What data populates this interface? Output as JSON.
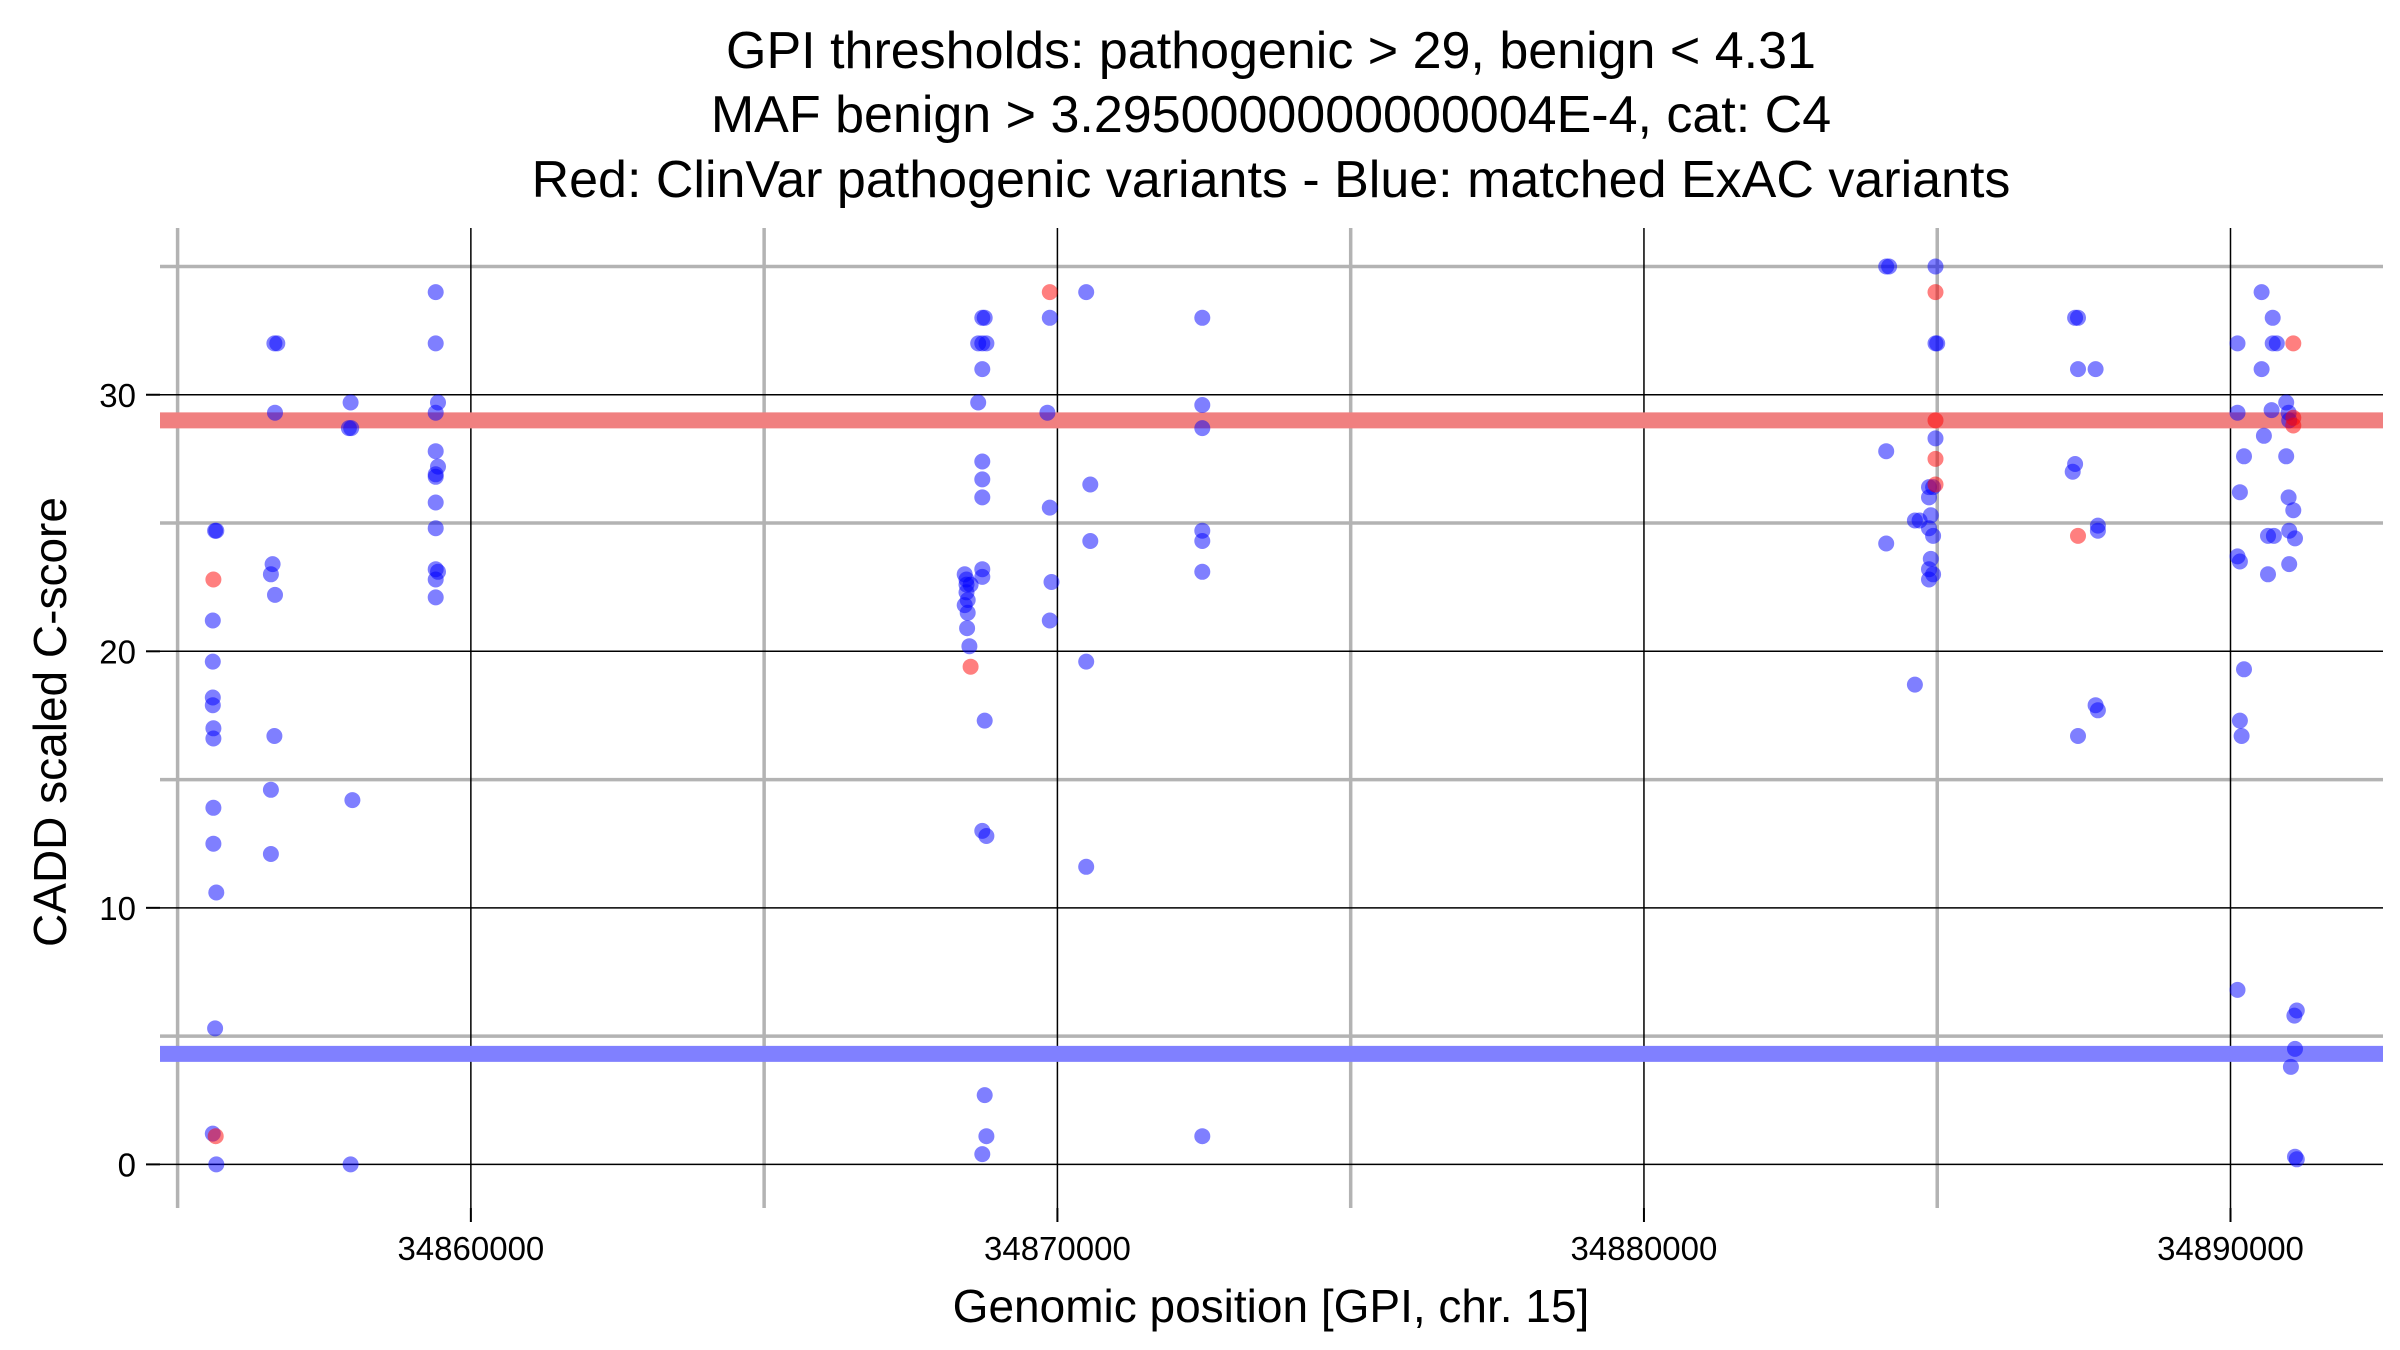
{
  "chart_data": {
    "type": "scatter",
    "title_lines": [
      "GPI thresholds: pathogenic > 29, benign < 4.31",
      "MAF benign > 3.2950000000000004E-4, cat: C4",
      "Red: ClinVar pathogenic variants - Blue: matched ExAC variants"
    ],
    "xlabel": "Genomic position [GPI, chr. 15]",
    "ylabel": "CADD scaled C-score",
    "xlim": [
      34854700,
      34892600
    ],
    "ylim": [
      -1.7,
      36.5
    ],
    "x_major_ticks": [
      34860000,
      34870000,
      34880000,
      34890000
    ],
    "x_minor_ticks": [
      34855000,
      34865000,
      34875000,
      34885000
    ],
    "y_major_ticks": [
      0,
      10,
      20,
      30
    ],
    "y_minor_ticks": [
      5,
      15,
      25,
      35
    ],
    "x_tick_labels": [
      "34860000",
      "34870000",
      "34880000",
      "34890000"
    ],
    "y_tick_labels": [
      "0",
      "10",
      "20",
      "30"
    ],
    "grid": true,
    "thresholds": [
      {
        "role": "pathogenic",
        "value": 29,
        "color": "#f08080"
      },
      {
        "role": "benign",
        "value": 4.31,
        "color": "#8080ff"
      }
    ],
    "colors": {
      "exac": "#0000ff",
      "clinvar": "#ff0000"
    },
    "series": [
      {
        "role": "clinvar",
        "points": [
          [
            34855610,
            22.8
          ],
          [
            34855650,
            1.1
          ],
          [
            34868520,
            19.4
          ],
          [
            34869870,
            34.0
          ],
          [
            34884970,
            34.0
          ],
          [
            34884970,
            29.0
          ],
          [
            34884970,
            27.5
          ],
          [
            34884970,
            26.5
          ],
          [
            34887400,
            24.5
          ],
          [
            34891070,
            32.0
          ],
          [
            34891070,
            29.1
          ],
          [
            34891070,
            28.8
          ]
        ]
      },
      {
        "role": "exac",
        "points": [
          [
            34855600,
            21.2
          ],
          [
            34855600,
            19.6
          ],
          [
            34855600,
            18.2
          ],
          [
            34855600,
            17.9
          ],
          [
            34855610,
            17.0
          ],
          [
            34855610,
            16.6
          ],
          [
            34855610,
            13.9
          ],
          [
            34855610,
            12.5
          ],
          [
            34855640,
            24.7
          ],
          [
            34855660,
            24.7
          ],
          [
            34855660,
            10.6
          ],
          [
            34855640,
            5.3
          ],
          [
            34855600,
            1.2
          ],
          [
            34855660,
            0.0
          ],
          [
            34856650,
            32.0
          ],
          [
            34856700,
            32.0
          ],
          [
            34856660,
            29.3
          ],
          [
            34856620,
            23.4
          ],
          [
            34856590,
            23.0
          ],
          [
            34856660,
            22.2
          ],
          [
            34856650,
            16.7
          ],
          [
            34856590,
            14.6
          ],
          [
            34856590,
            12.1
          ],
          [
            34857950,
            29.7
          ],
          [
            34857920,
            28.7
          ],
          [
            34857960,
            28.7
          ],
          [
            34857980,
            14.2
          ],
          [
            34857950,
            0.0
          ],
          [
            34859400,
            34.0
          ],
          [
            34859400,
            32.0
          ],
          [
            34859440,
            29.7
          ],
          [
            34859400,
            29.3
          ],
          [
            34859400,
            27.8
          ],
          [
            34859440,
            27.2
          ],
          [
            34859400,
            26.9
          ],
          [
            34859400,
            26.8
          ],
          [
            34859400,
            25.8
          ],
          [
            34859400,
            24.8
          ],
          [
            34859400,
            23.2
          ],
          [
            34859440,
            23.1
          ],
          [
            34859400,
            22.8
          ],
          [
            34859400,
            22.1
          ],
          [
            34868420,
            23.0
          ],
          [
            34868450,
            22.8
          ],
          [
            34868450,
            22.6
          ],
          [
            34868520,
            22.6
          ],
          [
            34868450,
            22.3
          ],
          [
            34868470,
            22.0
          ],
          [
            34868420,
            21.8
          ],
          [
            34868470,
            21.5
          ],
          [
            34868460,
            20.9
          ],
          [
            34868500,
            20.2
          ],
          [
            34868720,
            33.0
          ],
          [
            34868760,
            33.0
          ],
          [
            34868650,
            32.0
          ],
          [
            34868720,
            32.0
          ],
          [
            34868790,
            32.0
          ],
          [
            34868720,
            31.0
          ],
          [
            34868650,
            29.7
          ],
          [
            34868720,
            27.4
          ],
          [
            34868720,
            26.7
          ],
          [
            34868720,
            26.0
          ],
          [
            34868720,
            23.2
          ],
          [
            34868720,
            22.9
          ],
          [
            34868760,
            17.3
          ],
          [
            34868720,
            13.0
          ],
          [
            34868790,
            12.8
          ],
          [
            34868760,
            2.7
          ],
          [
            34868790,
            1.1
          ],
          [
            34868720,
            0.4
          ],
          [
            34869870,
            33.0
          ],
          [
            34869830,
            29.3
          ],
          [
            34869870,
            25.6
          ],
          [
            34869900,
            22.7
          ],
          [
            34869870,
            21.2
          ],
          [
            34870490,
            34.0
          ],
          [
            34870560,
            26.5
          ],
          [
            34870560,
            24.3
          ],
          [
            34870490,
            19.6
          ],
          [
            34870490,
            11.6
          ],
          [
            34872470,
            33.0
          ],
          [
            34872470,
            29.6
          ],
          [
            34872470,
            28.7
          ],
          [
            34872470,
            24.7
          ],
          [
            34872470,
            24.3
          ],
          [
            34872470,
            23.1
          ],
          [
            34872470,
            1.1
          ],
          [
            34884130,
            35.0
          ],
          [
            34884180,
            35.0
          ],
          [
            34884130,
            27.8
          ],
          [
            34884130,
            24.2
          ],
          [
            34884620,
            25.1
          ],
          [
            34884700,
            25.1
          ],
          [
            34884620,
            18.7
          ],
          [
            34884970,
            35.0
          ],
          [
            34884970,
            32.0
          ],
          [
            34885000,
            32.0
          ],
          [
            34884970,
            28.3
          ],
          [
            34884860,
            26.4
          ],
          [
            34884930,
            26.4
          ],
          [
            34884860,
            26.0
          ],
          [
            34884890,
            25.3
          ],
          [
            34884860,
            24.8
          ],
          [
            34884930,
            24.5
          ],
          [
            34884890,
            23.6
          ],
          [
            34884860,
            23.2
          ],
          [
            34884930,
            23.0
          ],
          [
            34884860,
            22.8
          ],
          [
            34887350,
            33.0
          ],
          [
            34887400,
            33.0
          ],
          [
            34887400,
            31.0
          ],
          [
            34887700,
            31.0
          ],
          [
            34887350,
            27.3
          ],
          [
            34887310,
            27.0
          ],
          [
            34887740,
            24.9
          ],
          [
            34887740,
            24.7
          ],
          [
            34887700,
            17.9
          ],
          [
            34887740,
            17.7
          ],
          [
            34887400,
            16.7
          ],
          [
            34890120,
            32.0
          ],
          [
            34890120,
            29.3
          ],
          [
            34890230,
            27.6
          ],
          [
            34890160,
            26.2
          ],
          [
            34890120,
            23.7
          ],
          [
            34890160,
            23.5
          ],
          [
            34890230,
            19.3
          ],
          [
            34890160,
            17.3
          ],
          [
            34890190,
            16.7
          ],
          [
            34890120,
            6.8
          ],
          [
            34890530,
            34.0
          ],
          [
            34890530,
            31.0
          ],
          [
            34890570,
            28.4
          ],
          [
            34890640,
            24.5
          ],
          [
            34890740,
            24.5
          ],
          [
            34890640,
            23.0
          ],
          [
            34890720,
            33.0
          ],
          [
            34890720,
            32.0
          ],
          [
            34890790,
            32.0
          ],
          [
            34890700,
            29.4
          ],
          [
            34890950,
            29.7
          ],
          [
            34890990,
            29.3
          ],
          [
            34891000,
            29.0
          ],
          [
            34890950,
            27.6
          ],
          [
            34890990,
            26.0
          ],
          [
            34891070,
            25.5
          ],
          [
            34891000,
            24.7
          ],
          [
            34891100,
            24.4
          ],
          [
            34891000,
            23.4
          ],
          [
            34891130,
            6.0
          ],
          [
            34891090,
            5.8
          ],
          [
            34891100,
            4.5
          ],
          [
            34891030,
            3.8
          ],
          [
            34891100,
            0.3
          ],
          [
            34891130,
            0.2
          ]
        ]
      }
    ]
  }
}
